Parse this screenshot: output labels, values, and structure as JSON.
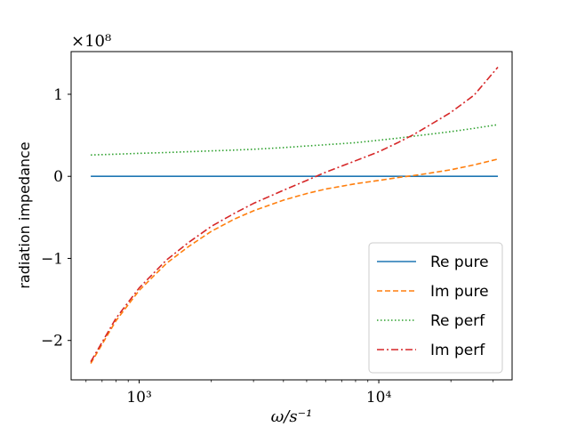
{
  "chart_data": {
    "type": "line",
    "xscale": "log",
    "xlim": [
      520,
      36000
    ],
    "ylim": [
      -248000000.0,
      152000000.0
    ],
    "xlabel": "ω/s⁻¹",
    "ylabel": "radiation impedance",
    "y_multiplier_label": "×10⁸",
    "x_ticks": [
      {
        "value": 1000,
        "label": "10³"
      },
      {
        "value": 10000,
        "label": "10⁴"
      }
    ],
    "y_ticks": [
      {
        "value": -200000000.0,
        "label": "−2"
      },
      {
        "value": -100000000.0,
        "label": "−1"
      },
      {
        "value": 0,
        "label": "0"
      },
      {
        "value": 100000000.0,
        "label": "1"
      }
    ],
    "legend_position": "lower-right",
    "grid": false,
    "x": [
      628,
      800,
      1000,
      1300,
      1600,
      2000,
      2500,
      3000,
      4000,
      5000,
      6000,
      8000,
      10000,
      12000,
      14000,
      16000,
      20000,
      25000,
      31400
    ],
    "series": [
      {
        "name": "Re pure",
        "color": "#1f77b4",
        "dash": "solid",
        "values": [
          0,
          0,
          0,
          0,
          0,
          0,
          0,
          0,
          0,
          0,
          0,
          0,
          0,
          0,
          0,
          0,
          0,
          0,
          0
        ]
      },
      {
        "name": "Im pure",
        "color": "#ff7f0e",
        "dash": "dashed",
        "values": [
          -228000000.0,
          -176000000.0,
          -139000000.0,
          -106000000.0,
          -86000000.0,
          -67000000.0,
          -52000000.0,
          -42000000.0,
          -29000000.0,
          -21000000.0,
          -15500000.0,
          -9000000.0,
          -5000000.0,
          -1500000.0,
          1000000.0,
          3500000.0,
          8000000.0,
          14000000.0,
          21000000.0
        ]
      },
      {
        "name": "Re perf",
        "color": "#2ca02c",
        "dash": "dotted",
        "values": [
          26000000.0,
          27000000.0,
          28000000.0,
          29000000.0,
          30000000.0,
          31000000.0,
          32000000.0,
          33000000.0,
          35000000.0,
          37000000.0,
          38500000.0,
          41000000.0,
          44000000.0,
          46500000.0,
          49000000.0,
          51000000.0,
          54500000.0,
          58500000.0,
          63000000.0
        ]
      },
      {
        "name": "Im perf",
        "color": "#d62728",
        "dash": "dashdot",
        "values": [
          -226000000.0,
          -173000000.0,
          -136000000.0,
          -102000000.0,
          -81000000.0,
          -61000000.0,
          -45000000.0,
          -33000000.0,
          -17000000.0,
          -5000000.0,
          5000000.0,
          19000000.0,
          30000000.0,
          41000000.0,
          51000000.0,
          61000000.0,
          78000000.0,
          99000000.0,
          133000000.0
        ]
      }
    ]
  }
}
